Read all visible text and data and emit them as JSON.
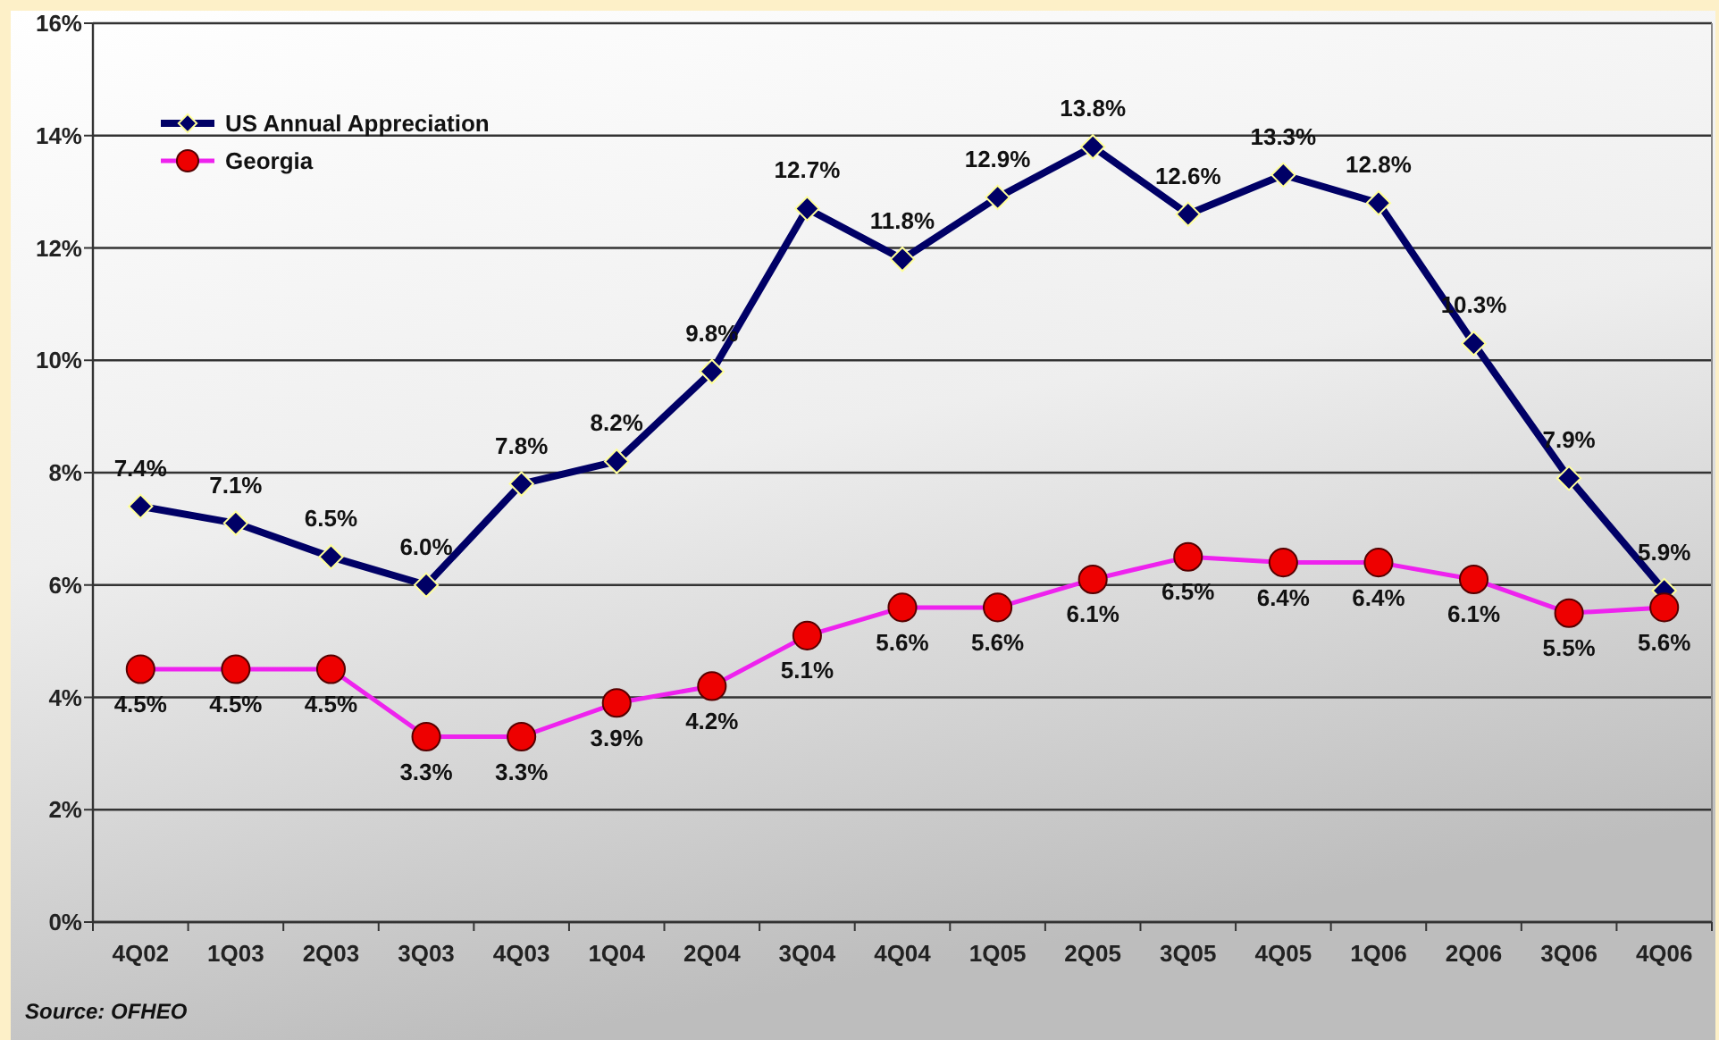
{
  "chart_data": {
    "type": "line",
    "categories": [
      "4Q02",
      "1Q03",
      "2Q03",
      "3Q03",
      "4Q03",
      "1Q04",
      "2Q04",
      "3Q04",
      "4Q04",
      "1Q05",
      "2Q05",
      "3Q05",
      "4Q05",
      "1Q06",
      "2Q06",
      "3Q06",
      "4Q06"
    ],
    "series": [
      {
        "name": "US Annual Appreciation",
        "color": "#000066",
        "marker": "diamond",
        "values": [
          7.4,
          7.1,
          6.5,
          6.0,
          7.8,
          8.2,
          9.8,
          12.7,
          11.8,
          12.9,
          13.8,
          12.6,
          13.3,
          12.8,
          10.3,
          7.9,
          5.9
        ],
        "value_labels": [
          "7.4%",
          "7.1%",
          "6.5%",
          "6.0%",
          "7.8%",
          "8.2%",
          "9.8%",
          "12.7%",
          "11.8%",
          "12.9%",
          "13.8%",
          "12.6%",
          "13.3%",
          "12.8%",
          "10.3%",
          "7.9%",
          "5.9%"
        ]
      },
      {
        "name": "Georgia",
        "color": "#ee22ee",
        "marker": "circle",
        "colors": [
          "#ee0000",
          "#ee0000",
          "#ee0000",
          "#ee0000",
          "#ee0000",
          "#ee0000",
          "#ee0000",
          "#ee0000",
          "#ee0000",
          "#ee0000",
          "#ee0000",
          "#ee0000",
          "#ee0000",
          "#ee0000",
          "#ee0000",
          "#ee0000",
          "#ee0000"
        ],
        "values": [
          4.5,
          4.5,
          4.5,
          3.3,
          3.3,
          3.9,
          4.2,
          5.1,
          5.6,
          5.6,
          6.1,
          6.5,
          6.4,
          6.4,
          6.1,
          5.5,
          5.6
        ],
        "value_labels": [
          "4.5%",
          "4.5%",
          "4.5%",
          "3.3%",
          "3.3%",
          "3.9%",
          "4.2%",
          "5.1%",
          "5.6%",
          "5.6%",
          "6.1%",
          "6.5%",
          "6.4%",
          "6.4%",
          "6.1%",
          "5.5%",
          "5.6%"
        ]
      }
    ],
    "ylim": [
      0,
      16
    ],
    "yticks": [
      {
        "value": 0,
        "label": "0%"
      },
      {
        "value": 2,
        "label": "2%"
      },
      {
        "value": 4,
        "label": "4%"
      },
      {
        "value": 6,
        "label": "6%"
      },
      {
        "value": 8,
        "label": "8%"
      },
      {
        "value": 10,
        "label": "10%"
      },
      {
        "value": 12,
        "label": "12%"
      },
      {
        "value": 14,
        "label": "14%"
      },
      {
        "value": 16,
        "label": "16%"
      }
    ],
    "grid": "y",
    "legend": "top left",
    "line_style": "solid",
    "annotations": [
      "Source: OFHEO"
    ]
  }
}
